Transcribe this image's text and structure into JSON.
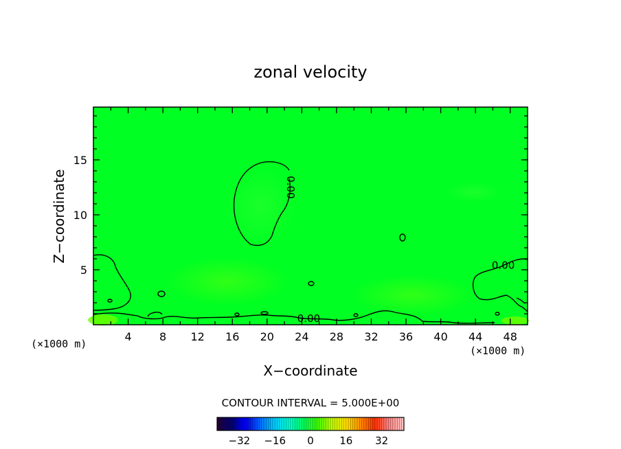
{
  "chart_data": {
    "type": "heatmap",
    "title": "zonal velocity",
    "xlabel": "X−coordinate",
    "ylabel": "Z−coordinate",
    "x_unit_left": "(×1000 m)",
    "x_unit_right": "(×1000 m)",
    "xlim": [
      0,
      50
    ],
    "ylim": [
      0,
      19.8
    ],
    "x_ticks": [
      4,
      8,
      12,
      16,
      20,
      24,
      28,
      32,
      36,
      40,
      44,
      48
    ],
    "x_tick_labels": [
      "4",
      "8",
      "12",
      "16",
      "20",
      "24",
      "28",
      "32",
      "36",
      "40",
      "44",
      "48"
    ],
    "y_ticks": [
      5,
      10,
      15
    ],
    "y_tick_labels": [
      "5",
      "10",
      "15"
    ],
    "field_color": "#00ff22",
    "contour_labels": [
      {
        "text": "0.00",
        "x": 22.7,
        "y": 12.5,
        "rotate": 90
      },
      {
        "text": "0.00",
        "x": 47.2,
        "y": 5.4,
        "rotate": 0
      },
      {
        "text": "0.00",
        "x": 24.8,
        "y": 0.55,
        "rotate": 0
      }
    ],
    "contour_interval_text": "CONTOUR INTERVAL =  5.000E+00",
    "colorbar": {
      "min": -42,
      "max": 42,
      "ticks": [
        -32,
        -16,
        0,
        16,
        32
      ],
      "tick_labels": [
        "−32",
        "−16",
        "0",
        "16",
        "32"
      ],
      "stops": [
        "#200030",
        "#000080",
        "#0000ff",
        "#0070ff",
        "#00d0ff",
        "#00ffd0",
        "#00ff60",
        "#40ff00",
        "#c0ff00",
        "#ffe000",
        "#ff9000",
        "#ff3000",
        "#ff8080",
        "#ffc0c0"
      ]
    }
  }
}
